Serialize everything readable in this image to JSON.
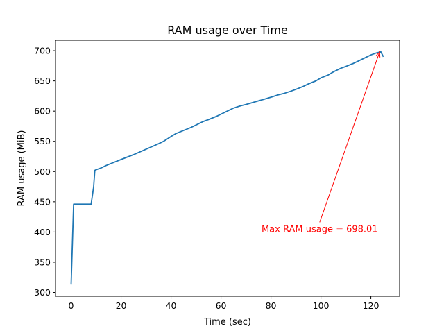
{
  "chart_data": {
    "type": "line",
    "title": "RAM usage over Time",
    "xlabel": "Time (sec)",
    "ylabel": "RAM usage (MiB)",
    "xlim": [
      -6.25,
      131.5
    ],
    "ylim": [
      293.7,
      717.3
    ],
    "xticks": [
      0,
      20,
      40,
      60,
      80,
      100,
      120
    ],
    "yticks": [
      300,
      350,
      400,
      450,
      500,
      550,
      600,
      650,
      700
    ],
    "grid": false,
    "series": [
      {
        "color": "#1f77b4",
        "x": [
          0,
          1,
          2,
          4,
          6,
          8,
          9,
          9.5,
          10,
          12,
          14,
          17,
          20,
          25,
          30,
          35,
          37,
          40,
          42,
          45,
          48,
          50,
          53,
          55,
          58,
          60,
          63,
          65,
          68,
          70,
          75,
          80,
          83,
          85,
          88,
          90,
          93,
          95,
          98,
          100,
          103,
          105,
          108,
          110,
          113,
          115,
          118,
          120,
          122,
          123,
          124,
          125
        ],
        "y": [
          313,
          446,
          446,
          446,
          446,
          446,
          474,
          502,
          503,
          506,
          510,
          515,
          520,
          528,
          537,
          546,
          550,
          558,
          563,
          568,
          573,
          577,
          583,
          586,
          591,
          595,
          601,
          605,
          609,
          611,
          617,
          623,
          627,
          629,
          633,
          636,
          641,
          645,
          650,
          655,
          660,
          665,
          671,
          674,
          679,
          683,
          689,
          693,
          696,
          697,
          698,
          690
        ]
      }
    ],
    "annotation": {
      "text": "Max RAM usage = 698.01",
      "color": "#ff0000",
      "point": [
        123.5,
        698.01
      ],
      "text_pos": [
        99.5,
        400
      ]
    }
  }
}
